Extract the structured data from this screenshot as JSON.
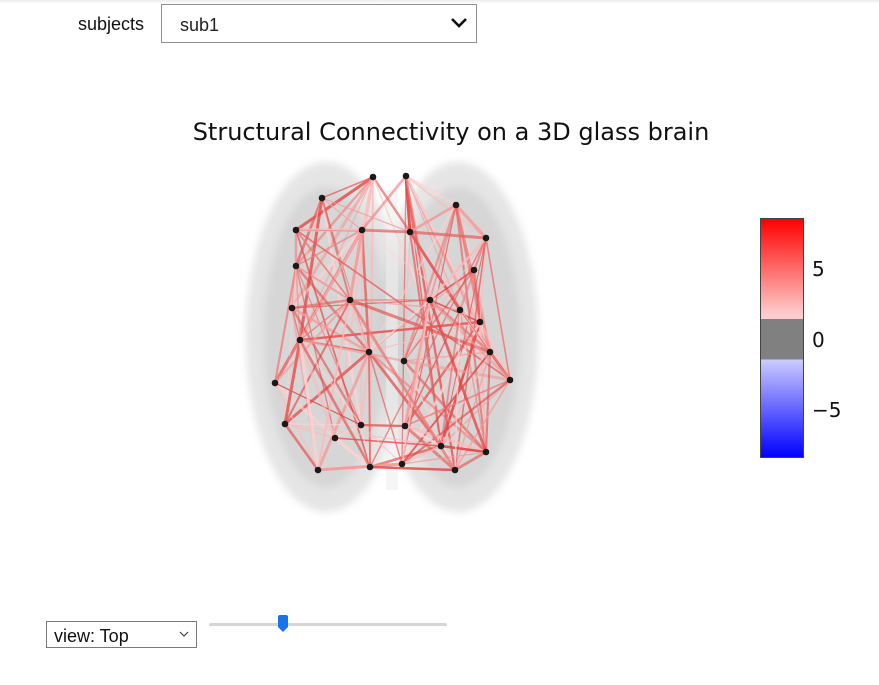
{
  "subjects": {
    "label": "subjects",
    "selected": "sub1"
  },
  "plot": {
    "title": "Structural Connectivity on a 3D glass brain",
    "colorbar": {
      "ticks": [
        {
          "label": "5",
          "value": 5
        },
        {
          "label": "0",
          "value": 0
        },
        {
          "label": "−5",
          "value": -5
        }
      ],
      "range": [
        -8,
        8
      ],
      "colors": {
        "high": "#ff0000",
        "mid_high": "#ffcccc",
        "zero": "#808080",
        "mid_low": "#ccccff",
        "low": "#0000ff"
      }
    }
  },
  "view": {
    "selected": "view: Top"
  },
  "slider": {
    "value_fraction": 0.31
  }
}
